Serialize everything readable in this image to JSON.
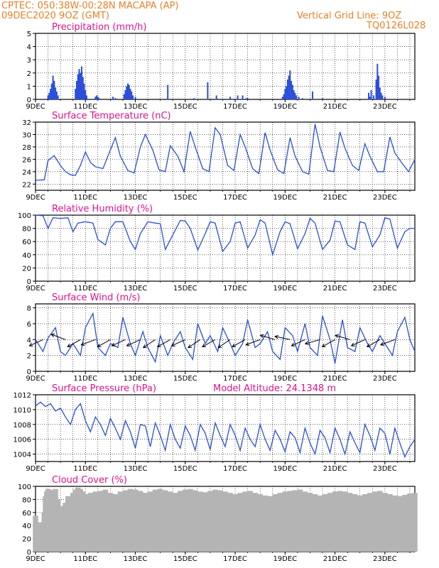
{
  "header": {
    "line1": "CPTEC:   050:38W-00:28N   MACAPA (AP)",
    "line2": "09DEC2020 9OZ (GMT)",
    "right1": "Vertical Grid Line: 9OZ",
    "right2": "TQ0126L028"
  },
  "colors": {
    "header": "#e8802a",
    "panel_title": "#e0128c",
    "line": "#2b4fd8",
    "bar": "#2b4fd8",
    "cloud": "#b4b4b4",
    "axis": "#000000",
    "grid": "#000000"
  },
  "chart_data": [
    {
      "id": "precip",
      "type": "bar",
      "title": "Precipitation (mm/h)",
      "x_ticks": [
        "9DEC",
        "11DEC",
        "13DEC",
        "15DEC",
        "17DEC",
        "19DEC",
        "21DEC",
        "23DEC"
      ],
      "x_range_days": [
        0,
        15.2
      ],
      "ylim": [
        0,
        5
      ],
      "y_ticks": [
        0,
        1,
        2,
        3,
        4,
        5
      ],
      "x_days": [
        0.5,
        0.55,
        0.6,
        0.65,
        0.7,
        0.75,
        0.8,
        0.85,
        0.9,
        1.6,
        1.65,
        1.7,
        1.75,
        1.8,
        1.85,
        1.9,
        1.95,
        2.0,
        2.05,
        2.4,
        2.45,
        2.5,
        2.55,
        3.1,
        3.2,
        3.55,
        3.6,
        3.65,
        3.7,
        3.75,
        3.8,
        3.85,
        3.9,
        4.0,
        5.3,
        6.35,
        6.9,
        7.25,
        7.8,
        8.1,
        8.3,
        8.45,
        8.5,
        9.9,
        9.95,
        10.0,
        10.05,
        10.1,
        10.15,
        10.2,
        10.25,
        10.3,
        10.35,
        10.4,
        10.45,
        10.55,
        10.7,
        11.1,
        11.5,
        13.35,
        13.4,
        13.45,
        13.55,
        13.65,
        13.7,
        13.75,
        13.8,
        13.85,
        13.9,
        14.0
      ],
      "values": [
        0.3,
        0.5,
        0.8,
        1.2,
        1.8,
        1.4,
        0.9,
        0.6,
        0.3,
        0.8,
        1.4,
        1.9,
        2.3,
        2.0,
        2.5,
        1.7,
        1.2,
        0.7,
        0.3,
        0.2,
        0.3,
        0.2,
        0.1,
        0.2,
        0.1,
        0.4,
        0.7,
        1.0,
        1.2,
        1.1,
        0.8,
        0.6,
        0.3,
        0.2,
        1.1,
        0.1,
        1.3,
        0.3,
        0.2,
        0.3,
        0.3,
        0.1,
        0.1,
        0.2,
        0.4,
        0.8,
        1.0,
        1.5,
        1.8,
        2.2,
        1.4,
        1.1,
        0.7,
        0.5,
        0.3,
        0.2,
        0.1,
        0.6,
        0.1,
        0.5,
        0.2,
        0.7,
        0.3,
        1.5,
        2.7,
        1.8,
        0.9,
        0.5,
        0.3,
        0.2
      ]
    },
    {
      "id": "temp",
      "type": "line",
      "title": "Surface Temperature (nC)",
      "x_ticks": [
        "9DEC",
        "11DEC",
        "13DEC",
        "15DEC",
        "17DEC",
        "19DEC",
        "21DEC",
        "23DEC"
      ],
      "x_range_days": [
        0,
        15.2
      ],
      "ylim": [
        21,
        32
      ],
      "y_ticks": [
        22,
        24,
        26,
        28,
        30,
        32
      ],
      "x_days": [
        0,
        0.35,
        0.5,
        0.75,
        1.0,
        1.2,
        1.4,
        1.6,
        1.8,
        2.0,
        2.2,
        2.4,
        2.7,
        2.95,
        3.2,
        3.4,
        3.7,
        3.95,
        4.2,
        4.4,
        4.7,
        4.95,
        5.2,
        5.4,
        5.7,
        5.95,
        6.2,
        6.4,
        6.7,
        6.95,
        7.2,
        7.4,
        7.7,
        7.95,
        8.2,
        8.4,
        8.7,
        8.95,
        9.2,
        9.4,
        9.7,
        9.95,
        10.2,
        10.4,
        10.7,
        10.95,
        11.2,
        11.4,
        11.7,
        11.95,
        12.2,
        12.4,
        12.7,
        12.95,
        13.2,
        13.4,
        13.7,
        13.95,
        14.2,
        14.4,
        14.7,
        14.95,
        15.2
      ],
      "values": [
        22.6,
        22.7,
        25.8,
        26.6,
        25.0,
        24.0,
        23.5,
        23.4,
        25.0,
        27.2,
        25.5,
        24.8,
        24.5,
        27.0,
        29.5,
        26.5,
        24.2,
        23.8,
        28.0,
        30.0,
        27.5,
        24.3,
        24.0,
        28.2,
        26.5,
        24.0,
        30.5,
        28.0,
        24.5,
        24.0,
        31.1,
        30.0,
        25.0,
        24.2,
        30.0,
        28.0,
        24.5,
        23.7,
        30.3,
        27.5,
        24.3,
        23.7,
        29.5,
        26.5,
        24.0,
        23.6,
        31.7,
        28.0,
        24.2,
        24.0,
        30.4,
        27.8,
        25.0,
        24.2,
        28.5,
        26.5,
        24.0,
        24.0,
        29.6,
        27.0,
        25.3,
        24.0,
        26.0
      ]
    },
    {
      "id": "rh",
      "type": "line",
      "title": "Relative Humidity (%)",
      "x_ticks": [
        "9DEC",
        "11DEC",
        "13DEC",
        "15DEC",
        "17DEC",
        "19DEC",
        "21DEC",
        "23DEC"
      ],
      "x_range_days": [
        0,
        15.2
      ],
      "ylim": [
        0,
        100
      ],
      "y_ticks": [
        0,
        20,
        40,
        60,
        80,
        100
      ],
      "x_days": [
        0,
        0.3,
        0.5,
        0.7,
        1.0,
        1.3,
        1.5,
        1.7,
        2.0,
        2.3,
        2.5,
        2.8,
        3.0,
        3.2,
        3.5,
        3.8,
        4.0,
        4.2,
        4.5,
        4.8,
        5.0,
        5.2,
        5.5,
        5.8,
        6.0,
        6.2,
        6.5,
        6.8,
        7.0,
        7.2,
        7.5,
        7.8,
        8.0,
        8.2,
        8.5,
        8.8,
        9.0,
        9.2,
        9.5,
        9.8,
        10.0,
        10.2,
        10.5,
        10.8,
        11.0,
        11.2,
        11.5,
        11.8,
        12.0,
        12.2,
        12.5,
        12.8,
        13.0,
        13.2,
        13.5,
        13.8,
        14.0,
        14.2,
        14.5,
        14.8,
        15.0,
        15.2
      ],
      "values": [
        100,
        99,
        80,
        96,
        95,
        96,
        75,
        88,
        90,
        88,
        63,
        55,
        80,
        90,
        90,
        60,
        48,
        72,
        90,
        88,
        87,
        48,
        70,
        92,
        91,
        80,
        47,
        72,
        90,
        88,
        45,
        60,
        88,
        90,
        50,
        70,
        93,
        88,
        40,
        75,
        90,
        87,
        49,
        72,
        95,
        88,
        48,
        62,
        91,
        90,
        55,
        48,
        90,
        88,
        52,
        70,
        96,
        94,
        50,
        75,
        80,
        80
      ]
    },
    {
      "id": "wind",
      "type": "line",
      "title": "Surface Wind (m/s)",
      "x_ticks": [
        "9DEC",
        "11DEC",
        "13DEC",
        "15DEC",
        "17DEC",
        "19DEC",
        "21DEC",
        "23DEC"
      ],
      "x_range_days": [
        0,
        15.2
      ],
      "ylim": [
        0,
        8.5
      ],
      "y_ticks": [
        0,
        2,
        4,
        6,
        8
      ],
      "x_days": [
        0,
        0.3,
        0.5,
        0.8,
        1.0,
        1.2,
        1.5,
        1.8,
        2.0,
        2.3,
        2.5,
        2.8,
        3.0,
        3.3,
        3.5,
        3.8,
        4.0,
        4.3,
        4.5,
        4.8,
        5.0,
        5.3,
        5.5,
        5.8,
        6.0,
        6.3,
        6.5,
        6.8,
        7.0,
        7.3,
        7.5,
        7.8,
        8.0,
        8.3,
        8.5,
        8.8,
        9.0,
        9.3,
        9.5,
        9.8,
        10.0,
        10.3,
        10.5,
        10.8,
        11.0,
        11.3,
        11.5,
        11.8,
        12.0,
        12.3,
        12.5,
        12.8,
        13.0,
        13.3,
        13.5,
        13.8,
        14.0,
        14.3,
        14.5,
        14.8,
        15.0,
        15.2
      ],
      "values": [
        4.0,
        2.5,
        4.2,
        5.5,
        2.5,
        2.0,
        3.5,
        2.0,
        5.5,
        7.3,
        3.0,
        2.0,
        3.5,
        3.0,
        6.8,
        3.5,
        2.0,
        5.0,
        3.0,
        1.2,
        4.5,
        2.0,
        3.5,
        5.0,
        3.0,
        1.5,
        6.0,
        3.5,
        4.5,
        2.5,
        5.5,
        3.5,
        2.0,
        3.5,
        6.5,
        3.0,
        3.5,
        5.0,
        2.5,
        1.5,
        5.5,
        4.5,
        2.5,
        6.0,
        3.0,
        2.0,
        7.0,
        4.0,
        1.0,
        6.5,
        3.0,
        2.5,
        5.5,
        3.5,
        2.5,
        4.5,
        3.5,
        2.0,
        5.0,
        6.8,
        4.0,
        2.5
      ],
      "vectors_x_days": [
        0.3,
        1.2,
        1.8,
        2.4,
        3.0,
        3.6,
        4.2,
        4.8,
        5.4,
        6.0,
        6.6,
        7.2,
        7.8,
        8.4,
        9.0,
        9.6,
        10.2,
        10.8,
        11.4,
        12.0,
        12.6,
        13.2,
        13.8,
        14.4
      ],
      "vectors_angle_deg": [
        210,
        155,
        215,
        205,
        215,
        210,
        210,
        220,
        215,
        210,
        220,
        215,
        220,
        215,
        205,
        160,
        165,
        210,
        200,
        215,
        160,
        210,
        215,
        205
      ]
    },
    {
      "id": "pressure",
      "type": "line",
      "title": "Surface Pressure (hPa)",
      "annotation": "Model Altitude: 24.1348 m",
      "x_ticks": [
        "9DEC",
        "11DEC",
        "13DEC",
        "15DEC",
        "17DEC",
        "19DEC",
        "21DEC",
        "23DEC"
      ],
      "x_range_days": [
        0,
        15.2
      ],
      "ylim": [
        1003,
        1012
      ],
      "y_ticks": [
        1004,
        1006,
        1008,
        1010,
        1012
      ],
      "x_days": [
        0,
        0.2,
        0.4,
        0.6,
        0.8,
        1.0,
        1.2,
        1.4,
        1.6,
        1.8,
        2.0,
        2.2,
        2.4,
        2.6,
        2.8,
        3.0,
        3.2,
        3.4,
        3.6,
        3.8,
        4.0,
        4.2,
        4.4,
        4.6,
        4.8,
        5.0,
        5.2,
        5.4,
        5.6,
        5.8,
        6.0,
        6.2,
        6.4,
        6.6,
        6.8,
        7.0,
        7.2,
        7.4,
        7.6,
        7.8,
        8.0,
        8.2,
        8.4,
        8.6,
        8.8,
        9.0,
        9.2,
        9.4,
        9.6,
        9.8,
        10.0,
        10.2,
        10.4,
        10.6,
        10.8,
        11.0,
        11.2,
        11.4,
        11.6,
        11.8,
        12.0,
        12.2,
        12.4,
        12.6,
        12.8,
        13.0,
        13.2,
        13.4,
        13.6,
        13.8,
        14.0,
        14.2,
        14.4,
        14.6,
        14.8,
        15.0,
        15.2
      ],
      "values": [
        1010.5,
        1011.0,
        1010.4,
        1010.8,
        1009.8,
        1010.2,
        1009.0,
        1008.0,
        1010.0,
        1010.8,
        1008.5,
        1007.0,
        1009.0,
        1008.0,
        1006.5,
        1008.8,
        1007.5,
        1006.0,
        1008.5,
        1007.0,
        1004.8,
        1008.0,
        1007.8,
        1005.0,
        1008.2,
        1006.5,
        1004.5,
        1008.0,
        1006.0,
        1004.8,
        1007.8,
        1006.5,
        1004.5,
        1008.0,
        1006.8,
        1004.6,
        1008.2,
        1006.5,
        1005.0,
        1008.0,
        1006.5,
        1004.5,
        1007.5,
        1006.0,
        1005.0,
        1008.0,
        1006.0,
        1004.5,
        1007.2,
        1006.0,
        1004.3,
        1007.0,
        1006.2,
        1004.2,
        1007.5,
        1005.5,
        1004.0,
        1007.2,
        1006.2,
        1004.2,
        1007.5,
        1006.0,
        1004.0,
        1007.0,
        1005.5,
        1004.2,
        1008.0,
        1006.5,
        1004.5,
        1007.5,
        1006.8,
        1004.0,
        1007.5,
        1005.5,
        1003.6,
        1005.0,
        1006.0
      ]
    },
    {
      "id": "cloud",
      "type": "bar",
      "title": "Cloud Cover (%)",
      "x_ticks": [
        "9DEC",
        "11DEC",
        "13DEC",
        "15DEC",
        "17DEC",
        "19DEC",
        "21DEC",
        "23DEC"
      ],
      "x_range_days": [
        0,
        15.2
      ],
      "ylim": [
        0,
        100
      ],
      "y_ticks": [
        0,
        20,
        40,
        60,
        80,
        100
      ],
      "x_days": [
        0,
        0.05,
        0.1,
        0.15,
        0.2,
        0.25,
        0.3,
        0.35,
        0.4,
        0.45,
        0.5,
        0.55,
        0.6,
        0.7,
        0.8,
        0.9,
        1.0,
        1.1,
        1.2,
        1.3,
        1.4,
        1.5,
        1.6,
        1.7,
        1.8,
        1.9,
        2.0,
        2.2,
        2.4,
        2.6,
        2.8,
        3.0,
        3.2,
        3.4,
        3.6,
        3.8,
        4.0,
        4.2,
        4.4,
        4.6,
        4.8,
        5.0,
        5.2,
        5.4,
        5.6,
        5.8,
        6.0,
        6.2,
        6.4,
        6.6,
        6.8,
        7.0,
        7.2,
        7.4,
        7.6,
        7.8,
        8.0,
        8.2,
        8.4,
        8.6,
        8.8,
        9.0,
        9.2,
        9.4,
        9.6,
        9.8,
        10.0,
        10.2,
        10.4,
        10.6,
        10.8,
        11.0,
        11.2,
        11.4,
        11.6,
        11.8,
        12.0,
        12.2,
        12.4,
        12.6,
        12.8,
        13.0,
        13.2,
        13.4,
        13.6,
        13.8,
        14.0,
        14.2,
        14.4,
        14.6,
        14.8,
        15.0,
        15.2
      ],
      "values": [
        55,
        40,
        35,
        45,
        38,
        30,
        40,
        60,
        85,
        92,
        96,
        95,
        90,
        94,
        96,
        80,
        70,
        62,
        75,
        85,
        80,
        90,
        95,
        98,
        96,
        92,
        88,
        90,
        92,
        93,
        95,
        90,
        88,
        92,
        94,
        96,
        95,
        93,
        90,
        92,
        95,
        96,
        94,
        92,
        90,
        93,
        95,
        96,
        94,
        92,
        91,
        93,
        95,
        94,
        92,
        90,
        88,
        90,
        92,
        93,
        90,
        88,
        86,
        85,
        88,
        90,
        92,
        93,
        94,
        95,
        92,
        90,
        88,
        86,
        88,
        90,
        92,
        93,
        92,
        90,
        88,
        86,
        88,
        90,
        92,
        93,
        90,
        88,
        86,
        85,
        87,
        89,
        90
      ]
    }
  ]
}
